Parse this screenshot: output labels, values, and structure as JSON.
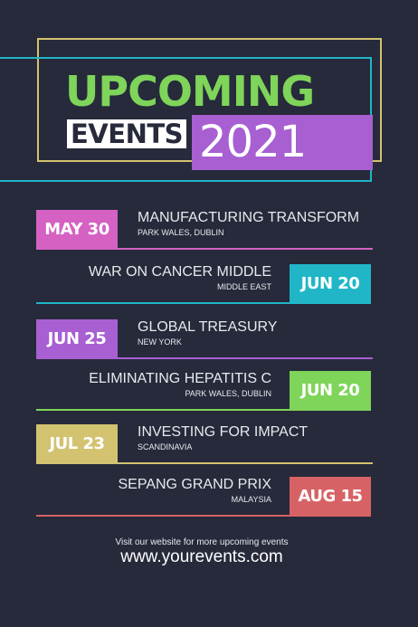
{
  "header": {
    "title_line1": "UPCOMING",
    "title_line2": "EVENTS",
    "year": "2021"
  },
  "colors": {
    "background": "#262a3b",
    "green": "#7fd45a",
    "purple": "#a75fd2",
    "pink": "#d562c3",
    "cyan": "#20b6c8",
    "yellow": "#d3c26f",
    "red": "#d76265"
  },
  "events": [
    {
      "date": "MAY 30",
      "name": "MANUFACTURING TRANSFORM",
      "location": "PARK WALES, DUBLIN",
      "color": "#d562c3"
    },
    {
      "date": "JUN 20",
      "name": "WAR ON CANCER MIDDLE",
      "location": "MIDDLE EAST",
      "color": "#20b6c8"
    },
    {
      "date": "JUN 25",
      "name": "GLOBAL TREASURY",
      "location": "NEW YORK",
      "color": "#a75fd2"
    },
    {
      "date": "JUN 20",
      "name": "ELIMINATING HEPATITIS C",
      "location": "PARK WALES, DUBLIN",
      "color": "#7fd45a"
    },
    {
      "date": "JUL 23",
      "name": "INVESTING FOR IMPACT",
      "location": "SCANDINAVIA",
      "color": "#d3c26f"
    },
    {
      "date": "AUG 15",
      "name": "SEPANG GRAND PRIX",
      "location": "MALAYSIA",
      "color": "#d76265"
    }
  ],
  "footer": {
    "note": "Visit our website for more upcoming events",
    "url": "www.yourevents.com"
  }
}
